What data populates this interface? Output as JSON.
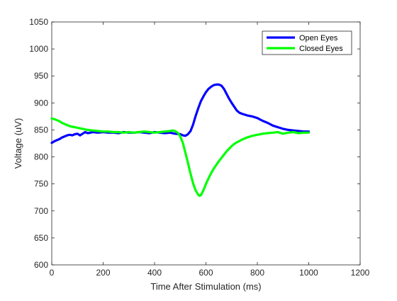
{
  "chart_data": {
    "type": "line",
    "title": "",
    "xlabel": "Time After Stimulation (ms)",
    "ylabel": "Voltage (uV)",
    "xlim": [
      0,
      1200
    ],
    "ylim": [
      600,
      1050
    ],
    "xticks": [
      0,
      200,
      400,
      600,
      800,
      1000,
      1200
    ],
    "yticks": [
      600,
      650,
      700,
      750,
      800,
      850,
      900,
      950,
      1000,
      1050
    ],
    "grid": false,
    "legend_position": "top-right",
    "series": [
      {
        "name": "Open Eyes",
        "color": "#0000ff",
        "x": [
          0,
          10,
          20,
          30,
          40,
          50,
          60,
          70,
          80,
          90,
          100,
          110,
          120,
          130,
          140,
          150,
          160,
          180,
          200,
          220,
          240,
          260,
          280,
          300,
          320,
          340,
          360,
          380,
          400,
          420,
          440,
          460,
          480,
          500,
          510,
          520,
          530,
          540,
          550,
          560,
          570,
          580,
          590,
          600,
          610,
          620,
          630,
          640,
          650,
          660,
          670,
          680,
          690,
          700,
          710,
          720,
          730,
          740,
          760,
          780,
          800,
          820,
          840,
          860,
          880,
          900,
          920,
          940,
          960,
          980,
          1000
        ],
        "y": [
          826,
          829,
          831,
          833,
          836,
          838,
          840,
          841,
          840,
          842,
          843,
          840,
          843,
          846,
          844,
          845,
          846,
          845,
          846,
          845,
          845,
          844,
          846,
          845,
          845,
          846,
          845,
          844,
          846,
          845,
          844,
          845,
          843,
          842,
          840,
          839,
          842,
          848,
          860,
          876,
          890,
          903,
          912,
          920,
          926,
          930,
          933,
          934,
          934,
          932,
          926,
          917,
          908,
          900,
          893,
          886,
          882,
          880,
          877,
          875,
          872,
          867,
          863,
          858,
          855,
          852,
          850,
          849,
          848,
          847,
          847
        ]
      },
      {
        "name": "Closed Eyes",
        "color": "#00ff00",
        "x": [
          0,
          10,
          20,
          30,
          40,
          50,
          60,
          70,
          80,
          90,
          100,
          120,
          140,
          160,
          180,
          200,
          220,
          240,
          260,
          280,
          300,
          320,
          340,
          360,
          380,
          400,
          420,
          440,
          460,
          470,
          480,
          490,
          500,
          510,
          520,
          530,
          540,
          550,
          560,
          570,
          575,
          580,
          590,
          600,
          610,
          620,
          630,
          640,
          650,
          660,
          670,
          680,
          690,
          700,
          710,
          720,
          740,
          760,
          780,
          800,
          820,
          840,
          860,
          880,
          900,
          920,
          940,
          960,
          980,
          1000
        ],
        "y": [
          871,
          870,
          868,
          866,
          863,
          861,
          859,
          857,
          856,
          855,
          854,
          852,
          850,
          849,
          848,
          847,
          847,
          846,
          846,
          845,
          846,
          845,
          846,
          847,
          846,
          845,
          846,
          847,
          848,
          849,
          848,
          845,
          838,
          826,
          808,
          789,
          769,
          751,
          738,
          730,
          728,
          729,
          738,
          750,
          760,
          770,
          778,
          785,
          792,
          798,
          804,
          810,
          815,
          820,
          824,
          827,
          832,
          836,
          839,
          841,
          843,
          844,
          845,
          846,
          843,
          845,
          846,
          844,
          845,
          845
        ]
      }
    ]
  }
}
